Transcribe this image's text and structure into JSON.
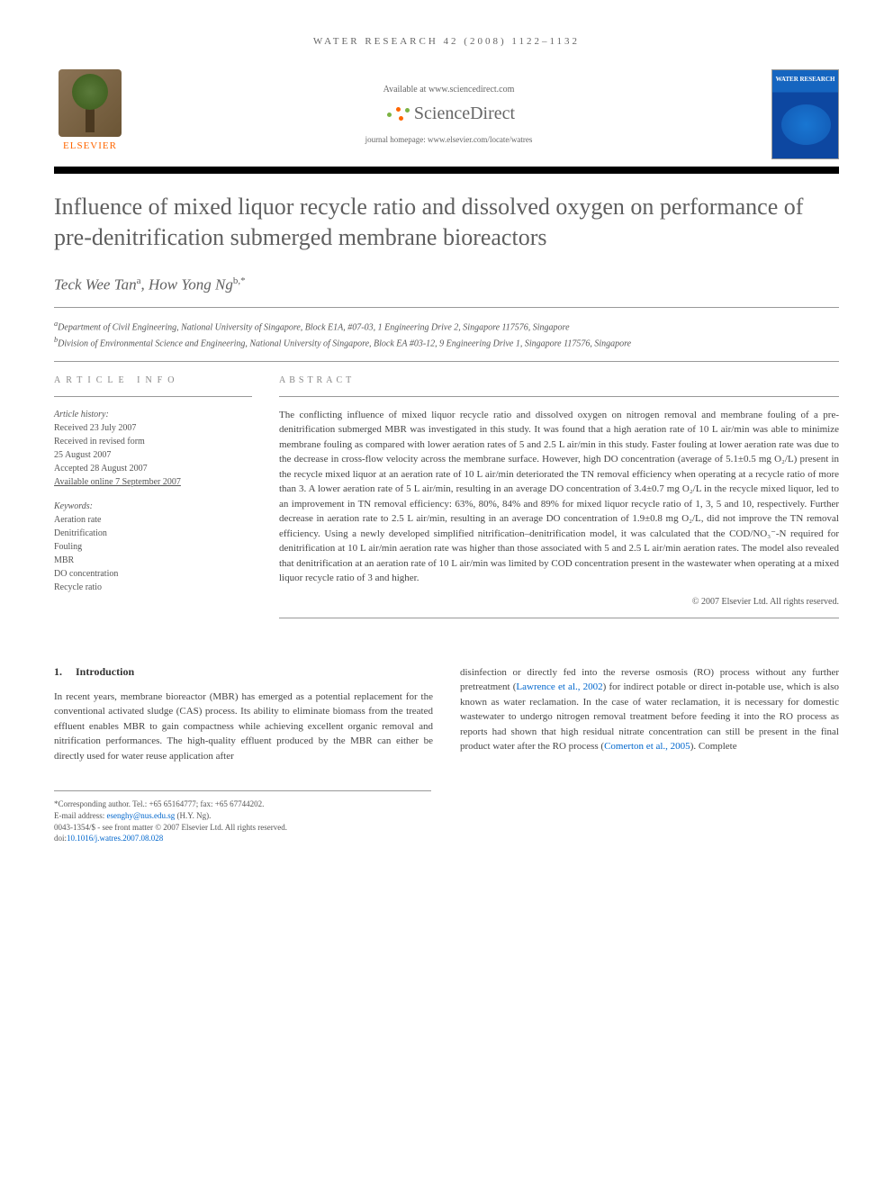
{
  "journal_header": "WATER RESEARCH 42 (2008) 1122–1132",
  "banner": {
    "available_text": "Available at www.sciencedirect.com",
    "sciencedirect_text": "ScienceDirect",
    "homepage_text": "journal homepage: www.elsevier.com/locate/watres",
    "elsevier_label": "ELSEVIER",
    "cover_label": "WATER RESEARCH"
  },
  "title": "Influence of mixed liquor recycle ratio and dissolved oxygen on performance of pre-denitrification submerged membrane bioreactors",
  "authors_html": "Teck Wee Tan",
  "author_sup_a": "a",
  "author2": ", How Yong Ng",
  "author_sup_b": "b,",
  "author_star": "*",
  "affiliations": {
    "a": "Department of Civil Engineering, National University of Singapore, Block E1A, #07-03, 1 Engineering Drive 2, Singapore 117576, Singapore",
    "b": "Division of Environmental Science and Engineering, National University of Singapore, Block EA #03-12, 9 Engineering Drive 1, Singapore 117576, Singapore"
  },
  "article_info": {
    "heading": "ARTICLE INFO",
    "history_label": "Article history:",
    "received": "Received 23 July 2007",
    "revised_form": "Received in revised form",
    "revised_date": "25 August 2007",
    "accepted": "Accepted 28 August 2007",
    "online": "Available online 7 September 2007",
    "keywords_label": "Keywords:",
    "keywords": [
      "Aeration rate",
      "Denitrification",
      "Fouling",
      "MBR",
      "DO concentration",
      "Recycle ratio"
    ]
  },
  "abstract": {
    "heading": "ABSTRACT",
    "text": "The conflicting influence of mixed liquor recycle ratio and dissolved oxygen on nitrogen removal and membrane fouling of a pre-denitrification submerged MBR was investigated in this study. It was found that a high aeration rate of 10 L air/min was able to minimize membrane fouling as compared with lower aeration rates of 5 and 2.5 L air/min in this study. Faster fouling at lower aeration rate was due to the decrease in cross-flow velocity across the membrane surface. However, high DO concentration (average of 5.1±0.5 mg O₂/L) present in the recycle mixed liquor at an aeration rate of 10 L air/min deteriorated the TN removal efficiency when operating at a recycle ratio of more than 3. A lower aeration rate of 5 L air/min, resulting in an average DO concentration of 3.4±0.7 mg O₂/L in the recycle mixed liquor, led to an improvement in TN removal efficiency: 63%, 80%, 84% and 89% for mixed liquor recycle ratio of 1, 3, 5 and 10, respectively. Further decrease in aeration rate to 2.5 L air/min, resulting in an average DO concentration of 1.9±0.8 mg O₂/L, did not improve the TN removal efficiency. Using a newly developed simplified nitrification–denitrification model, it was calculated that the COD/NO₃⁻-N required for denitrification at 10 L air/min aeration rate was higher than those associated with 5 and 2.5 L air/min aeration rates. The model also revealed that denitrification at an aeration rate of 10 L air/min was limited by COD concentration present in the wastewater when operating at a mixed liquor recycle ratio of 3 and higher.",
    "copyright": "© 2007 Elsevier Ltd. All rights reserved."
  },
  "intro": {
    "number": "1.",
    "heading": "Introduction",
    "col1": "In recent years, membrane bioreactor (MBR) has emerged as a potential replacement for the conventional activated sludge (CAS) process. Its ability to eliminate biomass from the treated effluent enables MBR to gain compactness while achieving excellent organic removal and nitrification performances. The high-quality effluent produced by the MBR can either be directly used for water reuse application after",
    "col2_pre": "disinfection or directly fed into the reverse osmosis (RO) process without any further pretreatment (",
    "col2_link1": "Lawrence et al., 2002",
    "col2_mid": ") for indirect potable or direct in-potable use, which is also known as water reclamation. In the case of water reclamation, it is necessary for domestic wastewater to undergo nitrogen removal treatment before feeding it into the RO process as reports had shown that high residual nitrate concentration can still be present in the final product water after the RO process (",
    "col2_link2": "Comerton et al., 2005",
    "col2_post": "). Complete"
  },
  "footnotes": {
    "corresponding": "*Corresponding author. Tel.: +65 65164777; fax: +65 67744202.",
    "email_label": "E-mail address: ",
    "email": "esenghy@nus.edu.sg",
    "email_name": " (H.Y. Ng).",
    "front_matter": "0043-1354/$ - see front matter © 2007 Elsevier Ltd. All rights reserved.",
    "doi_label": "doi:",
    "doi": "10.1016/j.watres.2007.08.028"
  },
  "colors": {
    "elsevier_orange": "#ff6600",
    "link_blue": "#0066cc",
    "title_gray": "#606060",
    "text_gray": "#444444"
  }
}
